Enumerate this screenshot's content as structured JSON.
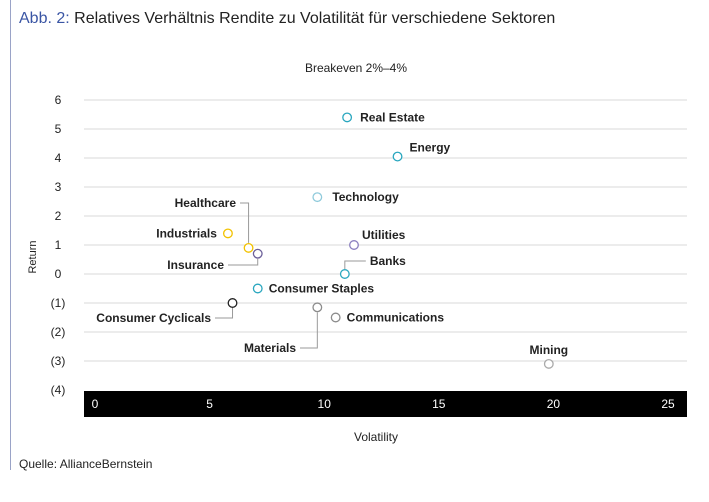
{
  "header": {
    "prefix": "Abb. 2:",
    "title": "Relatives Verhältnis Rendite zu Volatilität für verschiedene Sektoren"
  },
  "footer": {
    "source": "Quelle: AllianceBernstein"
  },
  "chart_data": {
    "type": "scatter",
    "title": "Breakeven 2%–4%",
    "xlabel": "Volatility",
    "ylabel": "Return",
    "xlim": [
      0,
      25
    ],
    "ylim": [
      -4,
      6
    ],
    "x_ticks": [
      "0",
      "5",
      "10",
      "15",
      "20",
      "25"
    ],
    "y_ticks": [
      "6",
      "5",
      "4",
      "3",
      "2",
      "1",
      "0",
      "(1)",
      "(2)",
      "(3)",
      "(4)"
    ],
    "grid": true,
    "points": [
      {
        "label": "Real Estate",
        "x": 11.0,
        "y": 5.4,
        "color": "#2aa7bf"
      },
      {
        "label": "Energy",
        "x": 13.2,
        "y": 4.05,
        "color": "#2aa7bf"
      },
      {
        "label": "Technology",
        "x": 9.7,
        "y": 2.65,
        "color": "#8fcadb"
      },
      {
        "label": "Healthcare",
        "x": 6.7,
        "y": 0.9,
        "color": "#f2c200"
      },
      {
        "label": "Industrials",
        "x": 5.8,
        "y": 1.4,
        "color": "#f2c200"
      },
      {
        "label": "Insurance",
        "x": 7.1,
        "y": 0.7,
        "color": "#6b5f99"
      },
      {
        "label": "Utilities",
        "x": 11.3,
        "y": 1.0,
        "color": "#8a7fbf"
      },
      {
        "label": "Banks",
        "x": 10.9,
        "y": 0.0,
        "color": "#2aa7bf"
      },
      {
        "label": "Consumer Staples",
        "x": 7.1,
        "y": -0.5,
        "color": "#2aa7bf"
      },
      {
        "label": "Consumer Cyclicals",
        "x": 6.0,
        "y": -1.0,
        "color": "#222222"
      },
      {
        "label": "Materials",
        "x": 9.7,
        "y": -1.15,
        "color": "#8c8c8c"
      },
      {
        "label": "Communications",
        "x": 10.5,
        "y": -1.5,
        "color": "#8c8c8c"
      },
      {
        "label": "Mining",
        "x": 19.8,
        "y": -3.1,
        "color": "#aaaaaa"
      }
    ]
  }
}
